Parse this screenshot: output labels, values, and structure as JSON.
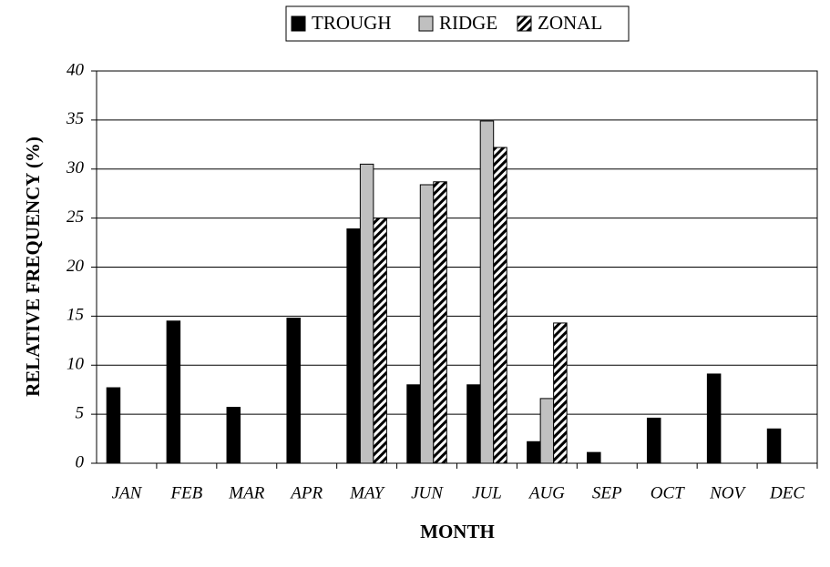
{
  "chart_data": {
    "type": "bar",
    "x_label": "MONTH",
    "y_label": "RELATIVE FREQUENCY (%)",
    "categories": [
      "JAN",
      "FEB",
      "MAR",
      "APR",
      "MAY",
      "JUN",
      "JUL",
      "AUG",
      "SEP",
      "OCT",
      "NOV",
      "DEC"
    ],
    "series": [
      {
        "name": "TROUGH",
        "color": "#000000",
        "values": [
          7.7,
          14.5,
          5.7,
          14.8,
          23.9,
          8.0,
          8.0,
          2.2,
          1.1,
          4.6,
          9.1,
          3.5
        ]
      },
      {
        "name": "RIDGE",
        "color": "#c0c0c0",
        "values": [
          0,
          0,
          0,
          0,
          30.5,
          28.4,
          34.9,
          6.6,
          0,
          0,
          0,
          0
        ]
      },
      {
        "name": "ZONAL",
        "color": "#000000",
        "hatch": true,
        "values": [
          0,
          0,
          0,
          0,
          25.0,
          28.7,
          32.2,
          14.3,
          0,
          0,
          0,
          0
        ]
      }
    ],
    "ylim": [
      0,
      40
    ],
    "yticks": [
      0,
      5,
      10,
      15,
      20,
      25,
      30,
      35,
      40
    ],
    "grid": true
  }
}
